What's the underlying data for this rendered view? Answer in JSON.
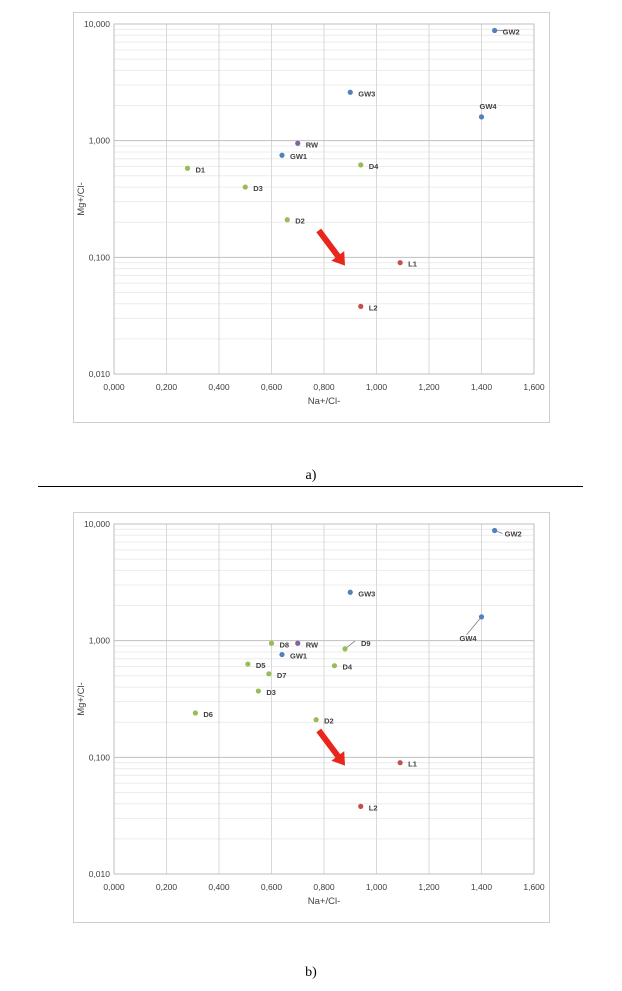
{
  "chart_data": [
    {
      "type": "scatter",
      "title": "",
      "xlabel": "Na+/Cl-",
      "ylabel": "Mg+/Cl-",
      "xlim": [
        0,
        1.6
      ],
      "ylim": [
        0.01,
        10
      ],
      "yscale": "log",
      "grid": true,
      "x_ticks": [
        "0,000",
        "0,200",
        "0,400",
        "0,600",
        "0,800",
        "1,000",
        "1,200",
        "1,400",
        "1,600"
      ],
      "y_ticks": [
        "0,010",
        "0,100",
        "1,000",
        "10,000"
      ],
      "annotation": "red arrow pointing down-right",
      "points": [
        {
          "label": "GW2",
          "x": 1.45,
          "y": 8.8,
          "color": "#4f81bd"
        },
        {
          "label": "GW3",
          "x": 0.9,
          "y": 2.6,
          "color": "#4f81bd"
        },
        {
          "label": "GW4",
          "x": 1.4,
          "y": 1.6,
          "color": "#4f81bd"
        },
        {
          "label": "RW",
          "x": 0.7,
          "y": 0.95,
          "color": "#8064a2"
        },
        {
          "label": "GW1",
          "x": 0.64,
          "y": 0.75,
          "color": "#4f81bd"
        },
        {
          "label": "D4",
          "x": 0.94,
          "y": 0.62,
          "color": "#9bbb59"
        },
        {
          "label": "D1",
          "x": 0.28,
          "y": 0.58,
          "color": "#9bbb59"
        },
        {
          "label": "D3",
          "x": 0.5,
          "y": 0.4,
          "color": "#9bbb59"
        },
        {
          "label": "D2",
          "x": 0.66,
          "y": 0.21,
          "color": "#9bbb59"
        },
        {
          "label": "L1",
          "x": 1.09,
          "y": 0.09,
          "color": "#c0504d"
        },
        {
          "label": "L2",
          "x": 0.94,
          "y": 0.038,
          "color": "#c0504d"
        }
      ]
    },
    {
      "type": "scatter",
      "title": "",
      "xlabel": "Na+/Cl-",
      "ylabel": "Mg+/Cl-",
      "xlim": [
        0,
        1.6
      ],
      "ylim": [
        0.01,
        10
      ],
      "yscale": "log",
      "grid": true,
      "x_ticks": [
        "0,000",
        "0,200",
        "0,400",
        "0,600",
        "0,800",
        "1,000",
        "1,200",
        "1,400",
        "1,600"
      ],
      "y_ticks": [
        "0,010",
        "0,100",
        "1,000",
        "10,000"
      ],
      "annotation": "red arrow pointing down-right",
      "points": [
        {
          "label": "GW2",
          "x": 1.45,
          "y": 8.8,
          "color": "#4f81bd"
        },
        {
          "label": "GW3",
          "x": 0.9,
          "y": 2.6,
          "color": "#4f81bd"
        },
        {
          "label": "GW4",
          "x": 1.4,
          "y": 1.6,
          "color": "#4f81bd"
        },
        {
          "label": "D8",
          "x": 0.6,
          "y": 0.95,
          "color": "#9bbb59"
        },
        {
          "label": "RW",
          "x": 0.7,
          "y": 0.95,
          "color": "#8064a2"
        },
        {
          "label": "D9",
          "x": 0.88,
          "y": 0.85,
          "color": "#9bbb59"
        },
        {
          "label": "GW1",
          "x": 0.64,
          "y": 0.76,
          "color": "#4f81bd"
        },
        {
          "label": "D5",
          "x": 0.51,
          "y": 0.63,
          "color": "#9bbb59"
        },
        {
          "label": "D4",
          "x": 0.84,
          "y": 0.61,
          "color": "#9bbb59"
        },
        {
          "label": "D7",
          "x": 0.59,
          "y": 0.52,
          "color": "#9bbb59"
        },
        {
          "label": "D3",
          "x": 0.55,
          "y": 0.37,
          "color": "#9bbb59"
        },
        {
          "label": "D6",
          "x": 0.31,
          "y": 0.24,
          "color": "#9bbb59"
        },
        {
          "label": "D2",
          "x": 0.77,
          "y": 0.21,
          "color": "#9bbb59"
        },
        {
          "label": "L1",
          "x": 1.09,
          "y": 0.09,
          "color": "#c0504d"
        },
        {
          "label": "L2",
          "x": 0.94,
          "y": 0.038,
          "color": "#c0504d"
        }
      ]
    }
  ],
  "captions": {
    "a": "a)",
    "b": "b)"
  },
  "colors": {
    "arrow": "#e8261c",
    "grid": "#d9d9d9",
    "axis_text": "#404040"
  }
}
